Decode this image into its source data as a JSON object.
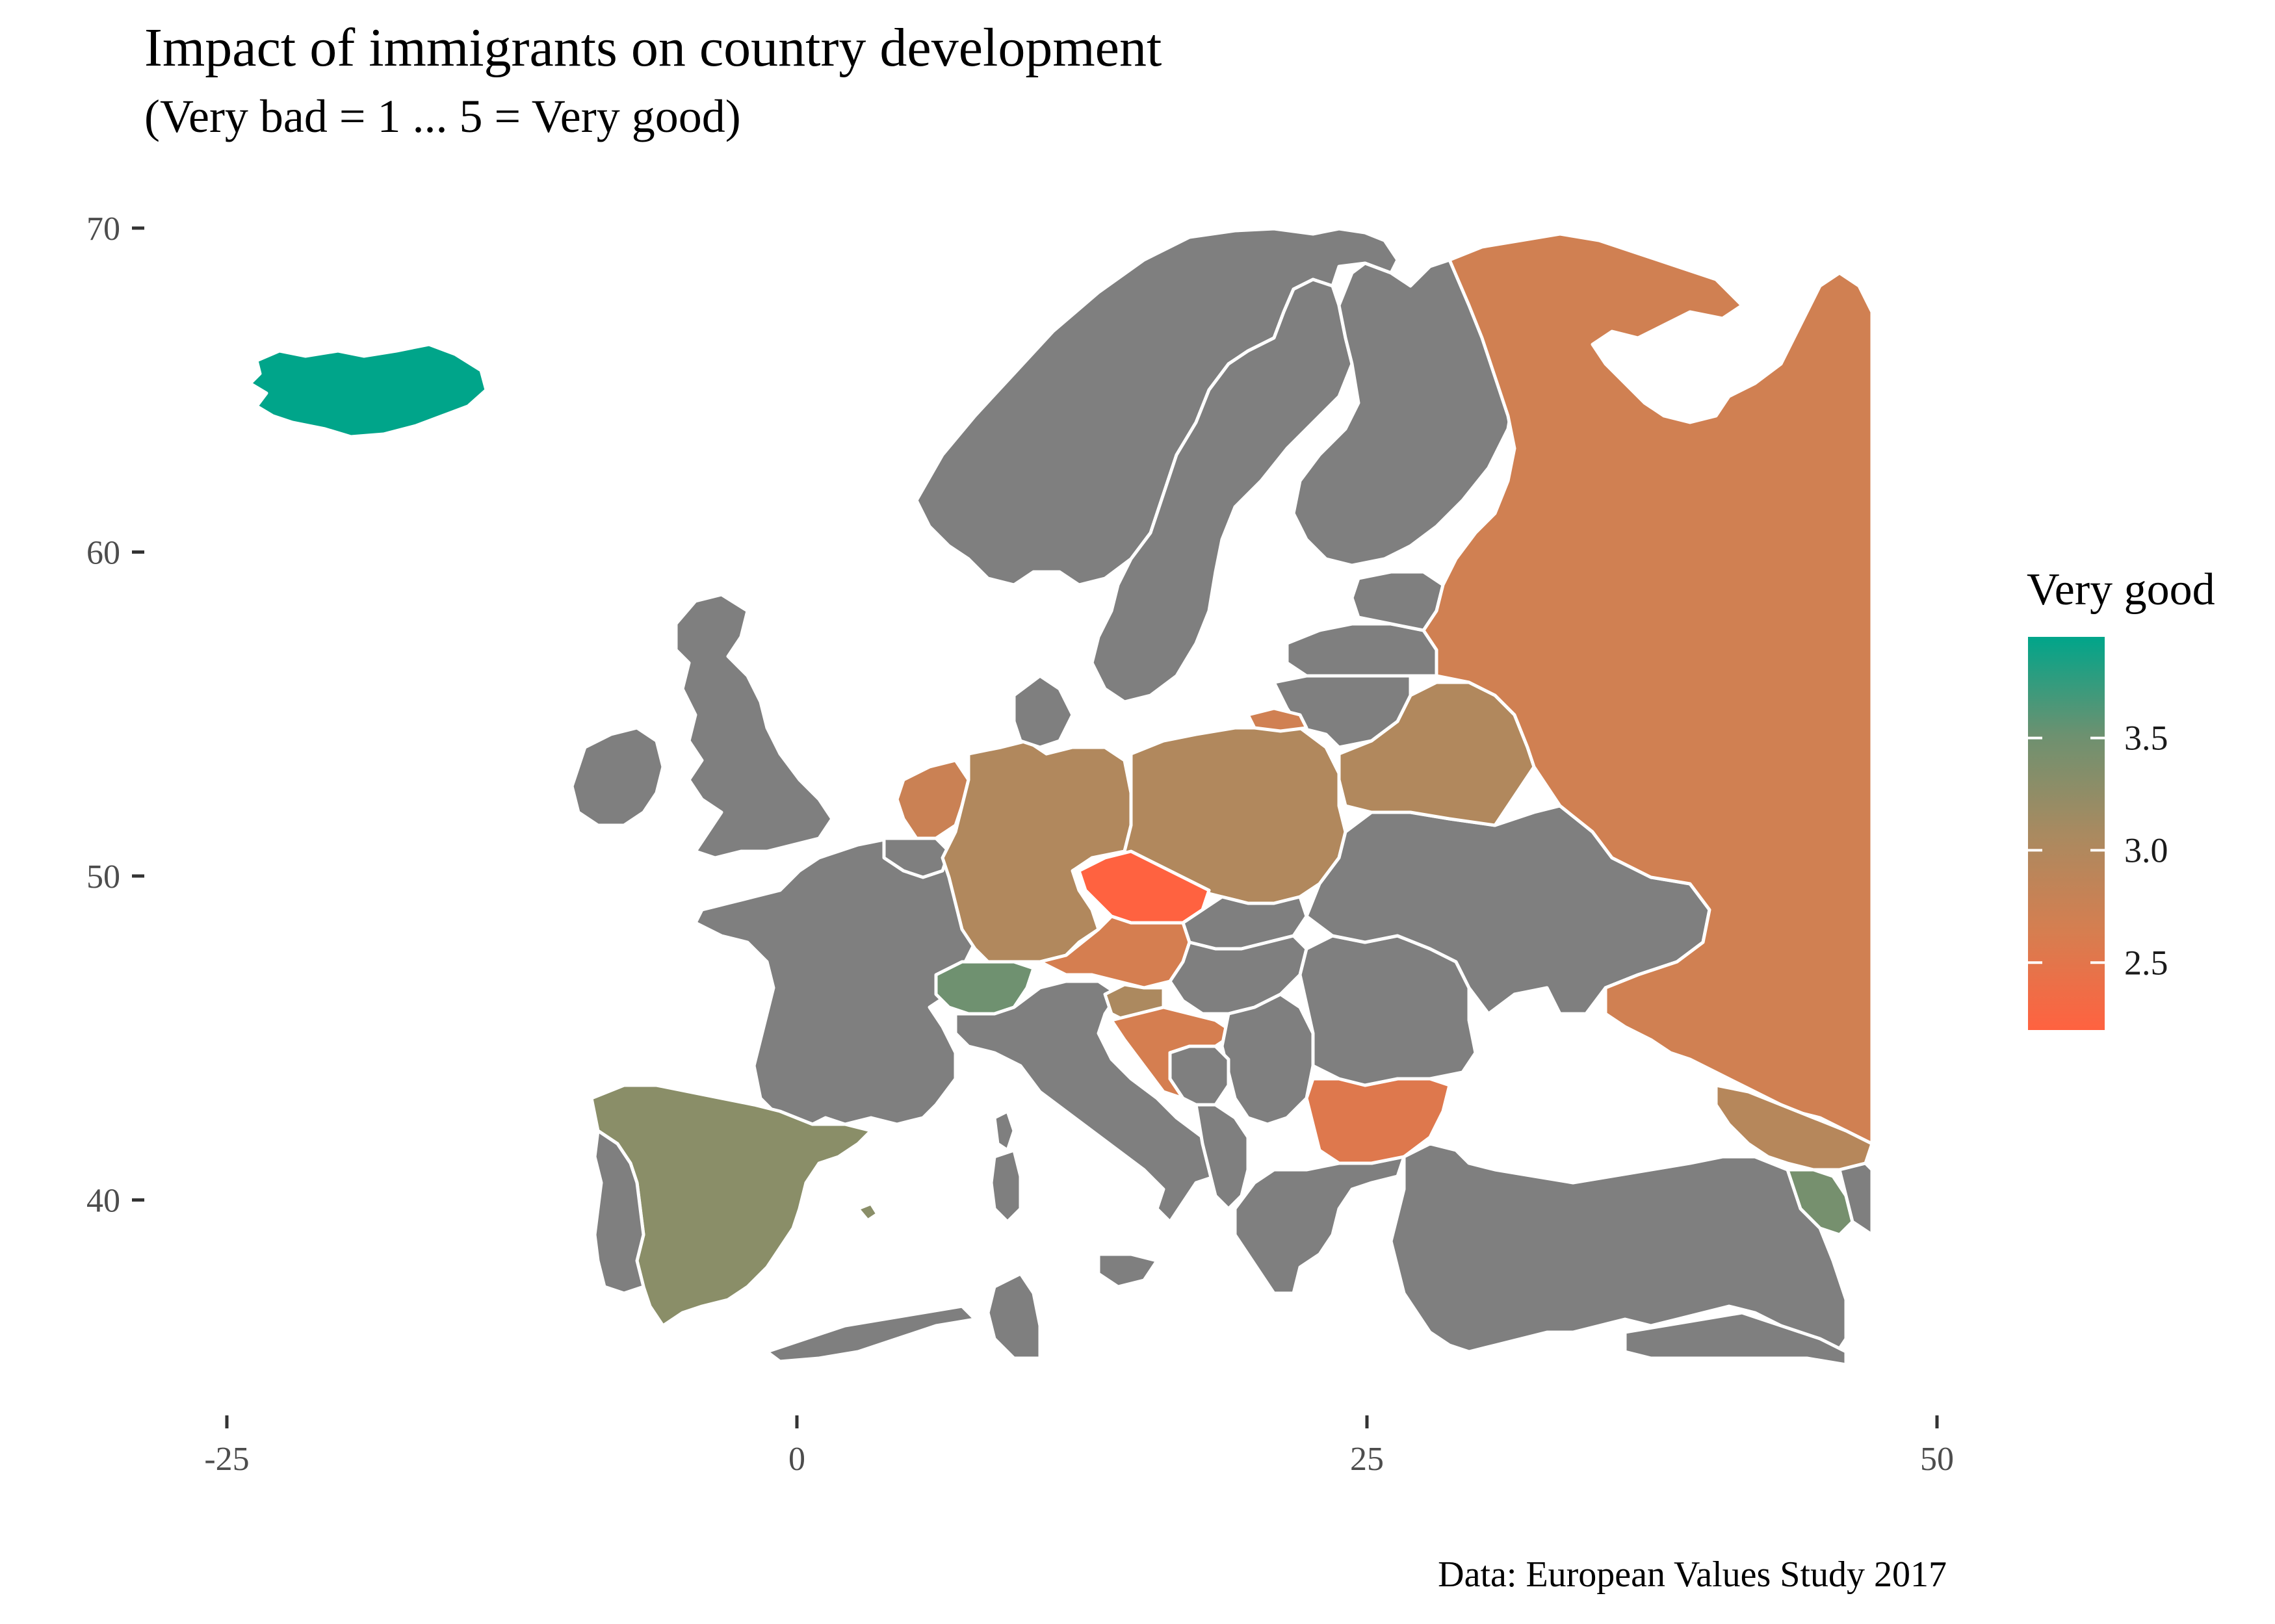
{
  "title": "Impact of immigrants on country development",
  "subtitle": "(Very bad = 1 ... 5 = Very good)",
  "caption": "Data: European Values Study 2017",
  "legend": {
    "title": "Very good",
    "breaks": [
      "3.5",
      "3.0",
      "2.5"
    ],
    "low_color": "#ff6240",
    "high_color": "#00a58a",
    "no_data_color": "#7f7f7f"
  },
  "axes": {
    "x_ticks": [
      "-25",
      "0",
      "25",
      "50"
    ],
    "y_ticks": [
      "70",
      "60",
      "50",
      "40"
    ]
  },
  "chart_data": {
    "type": "choropleth",
    "title": "Impact of immigrants on country development",
    "subtitle": "(Very bad = 1 ... 5 = Very good)",
    "xlim": [
      -25,
      50
    ],
    "ylim": [
      35,
      70
    ],
    "legend_range": [
      2.2,
      3.95
    ],
    "values": {
      "Iceland": 3.95,
      "Switzerland": 3.5,
      "Armenia": 3.45,
      "Spain": 3.3,
      "Slovenia": 3.05,
      "Germany": 3.0,
      "Poland": 3.0,
      "Belarus": 3.0,
      "Georgia": 2.95,
      "Netherlands": 2.75,
      "Russia": 2.7,
      "Austria": 2.65,
      "Croatia": 2.65,
      "Bulgaria": 2.55,
      "Czechia": 2.2
    }
  }
}
